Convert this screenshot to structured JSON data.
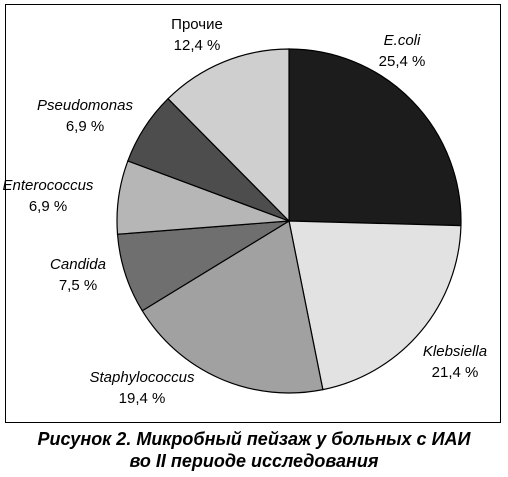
{
  "chart_data": {
    "type": "pie",
    "slices": [
      {
        "label": "E.coli",
        "value_text": "25,4 %",
        "value": 25.4,
        "color": "#1c1c1c",
        "italic": true
      },
      {
        "label": "Klebsiella",
        "value_text": "21,4 %",
        "value": 21.4,
        "color": "#e2e2e2",
        "italic": true
      },
      {
        "label": "Staphylococcus",
        "value_text": "19,4 %",
        "value": 19.4,
        "color": "#a1a1a1",
        "italic": true
      },
      {
        "label": "Candida",
        "value_text": "7,5 %",
        "value": 7.5,
        "color": "#6f6f6f",
        "italic": true
      },
      {
        "label": "Enterococcus",
        "value_text": "6,9 %",
        "value": 6.9,
        "color": "#b6b6b6",
        "italic": true
      },
      {
        "label": "Pseudomonas",
        "value_text": "6,9 %",
        "value": 6.9,
        "color": "#4d4d4d",
        "italic": true
      },
      {
        "label": "Прочие",
        "value_text": "12,4 %",
        "value": 12.4,
        "color": "#cfcfcf",
        "italic": false
      }
    ],
    "start": "12 o'clock",
    "direction": "clockwise"
  },
  "caption": {
    "line1": "Рисунок 2. Микробный пейзаж у больных с ИАИ",
    "line2": "во II периоде исследования"
  }
}
